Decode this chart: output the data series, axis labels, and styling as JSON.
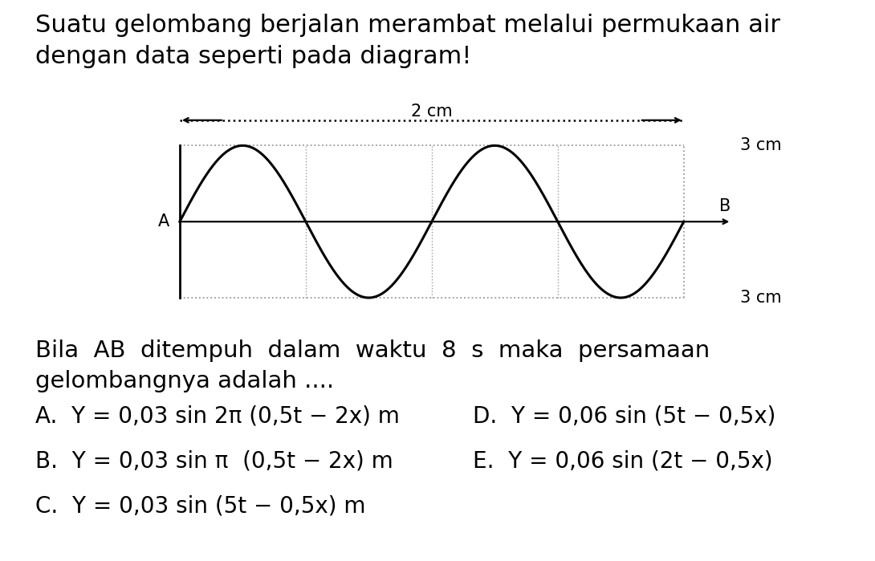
{
  "title_line1": "Suatu gelombang berjalan merambat melalui permukaan air",
  "title_line2": "dengan data seperti pada diagram!",
  "wave_label_top": "2 cm",
  "label_3cm_top": "3 cm",
  "label_3cm_bottom": "3 cm",
  "label_A": "A",
  "label_B": "B",
  "question_line1": "Bila  AB  ditempuh  dalam  waktu  8  s  maka  persamaan",
  "question_line2": "gelombangnya adalah ....",
  "option_A": "A.  Y = 0,03 sin 2π (0,5t − 2x) m",
  "option_B": "B.  Y = 0,03 sin π  (0,5t − 2x) m",
  "option_C": "C.  Y = 0,03 sin (5t − 0,5x) m",
  "option_D": "D.  Y = 0,06 sin (5t − 0,5x)",
  "option_E": "E.  Y = 0,06 sin (2t − 0,5x)",
  "bg_color": "#ffffff",
  "text_color": "#000000",
  "wave_color": "#000000",
  "dot_color": "#999999",
  "title_fontsize": 22,
  "body_fontsize": 21,
  "option_fontsize": 20,
  "diagram_label_fontsize": 15
}
